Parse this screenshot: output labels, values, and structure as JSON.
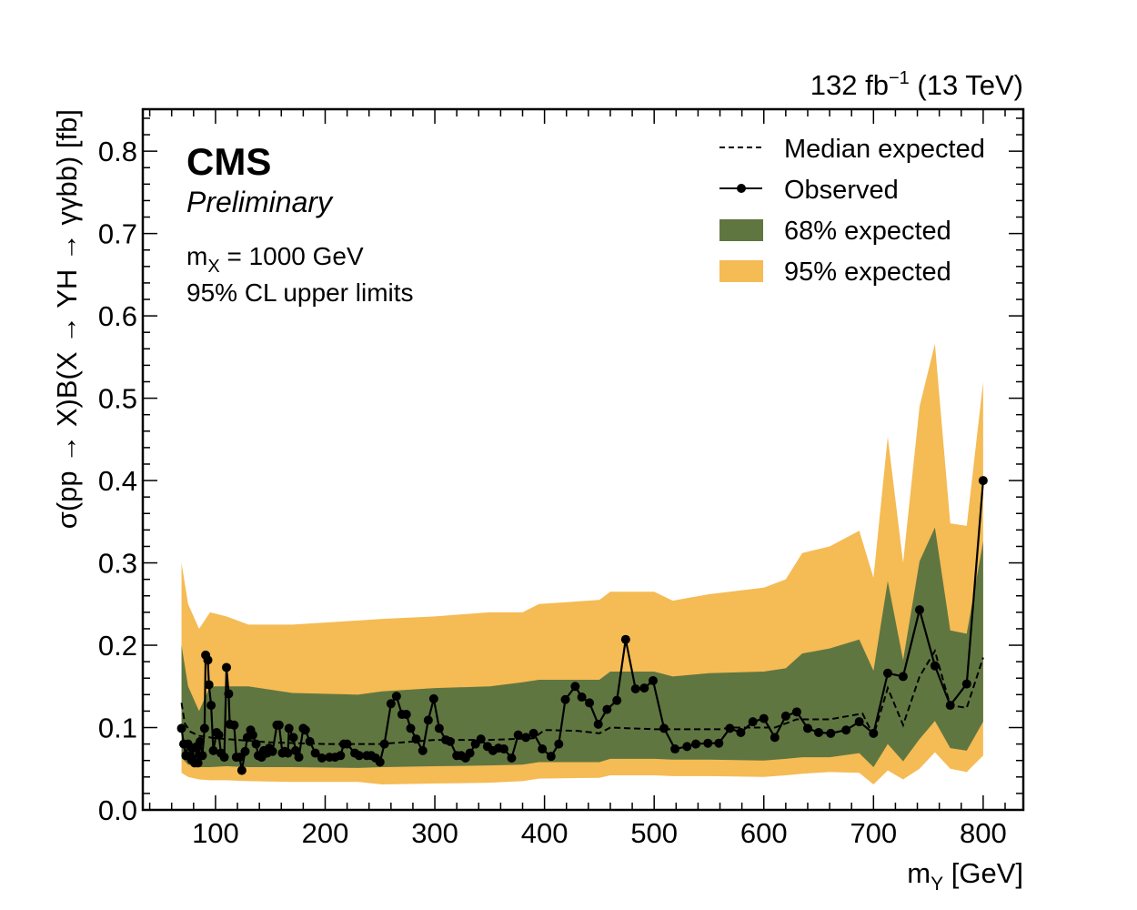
{
  "chart_data": {
    "type": "line",
    "lumi_label": "132 fb",
    "lumi_sup": "−1",
    "lumi_energy": " (13 TeV)",
    "cms_label": "CMS",
    "prelim_label": "Preliminary",
    "mass_label_main": "m",
    "mass_label_sub": "X",
    "mass_label_rest": " = 1000 GeV",
    "cl_label": "95% CL upper limits",
    "xlabel_main": "m",
    "xlabel_sub": "Y",
    "xlabel_rest": " [GeV]",
    "ylabel": "σ(pp → X)B(X → YH → γγbb) [fb]",
    "xlim": [
      33.7,
      836.6
    ],
    "ylim": [
      0,
      0.851
    ],
    "xticks": [
      100,
      200,
      300,
      400,
      500,
      600,
      700,
      800
    ],
    "xtick_labels": [
      "100",
      "200",
      "300",
      "400",
      "500",
      "600",
      "700",
      "800"
    ],
    "yticks": [
      0,
      0.1,
      0.2,
      0.3,
      0.4,
      0.5,
      0.6,
      0.7,
      0.8
    ],
    "ytick_labels": [
      "0.0",
      "0.1",
      "0.2",
      "0.3",
      "0.4",
      "0.5",
      "0.6",
      "0.7",
      "0.8"
    ],
    "legend": {
      "position": "top-right",
      "entries": [
        "Median expected",
        "Observed",
        "68% expected",
        "95% expected"
      ]
    },
    "colors": {
      "band68": "#607641",
      "band95": "#F5BB54",
      "line": "#000000"
    },
    "bands": [
      [
        69,
        0.045,
        0.063,
        0.2,
        0.3
      ],
      [
        75,
        0.04,
        0.055,
        0.15,
        0.25
      ],
      [
        85,
        0.037,
        0.052,
        0.12,
        0.22
      ],
      [
        95,
        0.036,
        0.052,
        0.15,
        0.24
      ],
      [
        110,
        0.036,
        0.053,
        0.15,
        0.235
      ],
      [
        130,
        0.035,
        0.052,
        0.15,
        0.225
      ],
      [
        170,
        0.034,
        0.052,
        0.142,
        0.225
      ],
      [
        230,
        0.034,
        0.051,
        0.14,
        0.23
      ],
      [
        252,
        0.031,
        0.052,
        0.144,
        0.232
      ],
      [
        300,
        0.032,
        0.053,
        0.148,
        0.235
      ],
      [
        350,
        0.033,
        0.054,
        0.15,
        0.24
      ],
      [
        380,
        0.035,
        0.055,
        0.155,
        0.24
      ],
      [
        395,
        0.038,
        0.058,
        0.158,
        0.25
      ],
      [
        450,
        0.039,
        0.058,
        0.158,
        0.255
      ],
      [
        460,
        0.042,
        0.062,
        0.168,
        0.265
      ],
      [
        500,
        0.042,
        0.062,
        0.168,
        0.265
      ],
      [
        517,
        0.041,
        0.061,
        0.162,
        0.254
      ],
      [
        550,
        0.041,
        0.061,
        0.166,
        0.262
      ],
      [
        600,
        0.04,
        0.06,
        0.168,
        0.27
      ],
      [
        620,
        0.042,
        0.062,
        0.172,
        0.28
      ],
      [
        635,
        0.044,
        0.064,
        0.19,
        0.312
      ],
      [
        660,
        0.046,
        0.064,
        0.196,
        0.32
      ],
      [
        687,
        0.045,
        0.069,
        0.207,
        0.339
      ],
      [
        700,
        0.031,
        0.052,
        0.169,
        0.282
      ],
      [
        713,
        0.048,
        0.08,
        0.278,
        0.453
      ],
      [
        727,
        0.037,
        0.059,
        0.182,
        0.3
      ],
      [
        742,
        0.05,
        0.086,
        0.302,
        0.49
      ],
      [
        756,
        0.07,
        0.108,
        0.343,
        0.566
      ],
      [
        770,
        0.05,
        0.075,
        0.218,
        0.348
      ],
      [
        785,
        0.046,
        0.072,
        0.214,
        0.345
      ],
      [
        800,
        0.066,
        0.107,
        0.326,
        0.52
      ]
    ],
    "median": [
      [
        69,
        0.13
      ],
      [
        72,
        0.105
      ],
      [
        77,
        0.095
      ],
      [
        85,
        0.09
      ],
      [
        100,
        0.087
      ],
      [
        150,
        0.082
      ],
      [
        200,
        0.08
      ],
      [
        250,
        0.08
      ],
      [
        300,
        0.085
      ],
      [
        350,
        0.085
      ],
      [
        390,
        0.087
      ],
      [
        400,
        0.097
      ],
      [
        430,
        0.096
      ],
      [
        450,
        0.093
      ],
      [
        460,
        0.1
      ],
      [
        500,
        0.098
      ],
      [
        520,
        0.098
      ],
      [
        560,
        0.098
      ],
      [
        570,
        0.1
      ],
      [
        610,
        0.1
      ],
      [
        630,
        0.11
      ],
      [
        660,
        0.11
      ],
      [
        690,
        0.117
      ],
      [
        700,
        0.09
      ],
      [
        713,
        0.148
      ],
      [
        727,
        0.103
      ],
      [
        742,
        0.162
      ],
      [
        756,
        0.193
      ],
      [
        770,
        0.127
      ],
      [
        785,
        0.124
      ],
      [
        800,
        0.185
      ]
    ],
    "observed": [
      [
        69,
        0.099
      ],
      [
        71,
        0.08
      ],
      [
        73,
        0.066
      ],
      [
        75,
        0.08
      ],
      [
        78,
        0.061
      ],
      [
        79,
        0.075
      ],
      [
        81,
        0.057
      ],
      [
        83,
        0.077
      ],
      [
        84,
        0.057
      ],
      [
        86,
        0.083
      ],
      [
        88,
        0.066
      ],
      [
        90,
        0.099
      ],
      [
        91,
        0.188
      ],
      [
        93,
        0.182
      ],
      [
        94,
        0.152
      ],
      [
        96,
        0.127
      ],
      [
        98,
        0.072
      ],
      [
        101,
        0.094
      ],
      [
        103,
        0.091
      ],
      [
        105,
        0.069
      ],
      [
        108,
        0.064
      ],
      [
        110,
        0.173
      ],
      [
        112,
        0.141
      ],
      [
        113,
        0.104
      ],
      [
        117,
        0.103
      ],
      [
        119,
        0.064
      ],
      [
        122,
        0.064
      ],
      [
        124,
        0.048
      ],
      [
        127,
        0.071
      ],
      [
        129,
        0.088
      ],
      [
        132,
        0.097
      ],
      [
        134,
        0.091
      ],
      [
        137,
        0.08
      ],
      [
        139,
        0.066
      ],
      [
        142,
        0.064
      ],
      [
        144,
        0.072
      ],
      [
        147,
        0.069
      ],
      [
        149,
        0.075
      ],
      [
        152,
        0.071
      ],
      [
        156,
        0.103
      ],
      [
        158,
        0.103
      ],
      [
        161,
        0.069
      ],
      [
        163,
        0.071
      ],
      [
        166,
        0.069
      ],
      [
        167,
        0.099
      ],
      [
        171,
        0.088
      ],
      [
        173,
        0.072
      ],
      [
        176,
        0.064
      ],
      [
        180,
        0.099
      ],
      [
        182,
        0.097
      ],
      [
        186,
        0.083
      ],
      [
        191,
        0.069
      ],
      [
        197,
        0.063
      ],
      [
        204,
        0.064
      ],
      [
        209,
        0.064
      ],
      [
        214,
        0.066
      ],
      [
        217,
        0.08
      ],
      [
        220,
        0.08
      ],
      [
        227,
        0.069
      ],
      [
        231,
        0.066
      ],
      [
        238,
        0.066
      ],
      [
        242,
        0.066
      ],
      [
        246,
        0.063
      ],
      [
        250,
        0.058
      ],
      [
        254,
        0.08
      ],
      [
        260,
        0.129
      ],
      [
        265,
        0.138
      ],
      [
        270,
        0.116
      ],
      [
        274,
        0.116
      ],
      [
        278,
        0.099
      ],
      [
        283,
        0.086
      ],
      [
        289,
        0.072
      ],
      [
        294,
        0.109
      ],
      [
        299,
        0.135
      ],
      [
        304,
        0.099
      ],
      [
        310,
        0.085
      ],
      [
        314,
        0.083
      ],
      [
        320,
        0.066
      ],
      [
        324,
        0.066
      ],
      [
        328,
        0.063
      ],
      [
        332,
        0.069
      ],
      [
        337,
        0.08
      ],
      [
        342,
        0.086
      ],
      [
        348,
        0.077
      ],
      [
        353,
        0.072
      ],
      [
        358,
        0.075
      ],
      [
        363,
        0.074
      ],
      [
        370,
        0.063
      ],
      [
        376,
        0.091
      ],
      [
        383,
        0.088
      ],
      [
        390,
        0.093
      ],
      [
        398,
        0.074
      ],
      [
        406,
        0.065
      ],
      [
        413,
        0.08
      ],
      [
        419,
        0.134
      ],
      [
        428,
        0.15
      ],
      [
        434,
        0.137
      ],
      [
        441,
        0.13
      ],
      [
        449,
        0.104
      ],
      [
        457,
        0.122
      ],
      [
        466,
        0.133
      ],
      [
        474,
        0.207
      ],
      [
        483,
        0.147
      ],
      [
        491,
        0.148
      ],
      [
        499,
        0.157
      ],
      [
        509,
        0.099
      ],
      [
        519,
        0.074
      ],
      [
        530,
        0.077
      ],
      [
        538,
        0.08
      ],
      [
        549,
        0.081
      ],
      [
        559,
        0.081
      ],
      [
        569,
        0.099
      ],
      [
        579,
        0.094
      ],
      [
        590,
        0.107
      ],
      [
        600,
        0.111
      ],
      [
        610,
        0.088
      ],
      [
        620,
        0.114
      ],
      [
        630,
        0.119
      ],
      [
        640,
        0.099
      ],
      [
        650,
        0.094
      ],
      [
        661,
        0.093
      ],
      [
        675,
        0.097
      ],
      [
        687,
        0.107
      ],
      [
        700,
        0.093
      ],
      [
        713,
        0.166
      ],
      [
        727,
        0.162
      ],
      [
        742,
        0.243
      ],
      [
        756,
        0.175
      ],
      [
        770,
        0.127
      ],
      [
        785,
        0.153
      ],
      [
        800,
        0.4
      ]
    ]
  }
}
